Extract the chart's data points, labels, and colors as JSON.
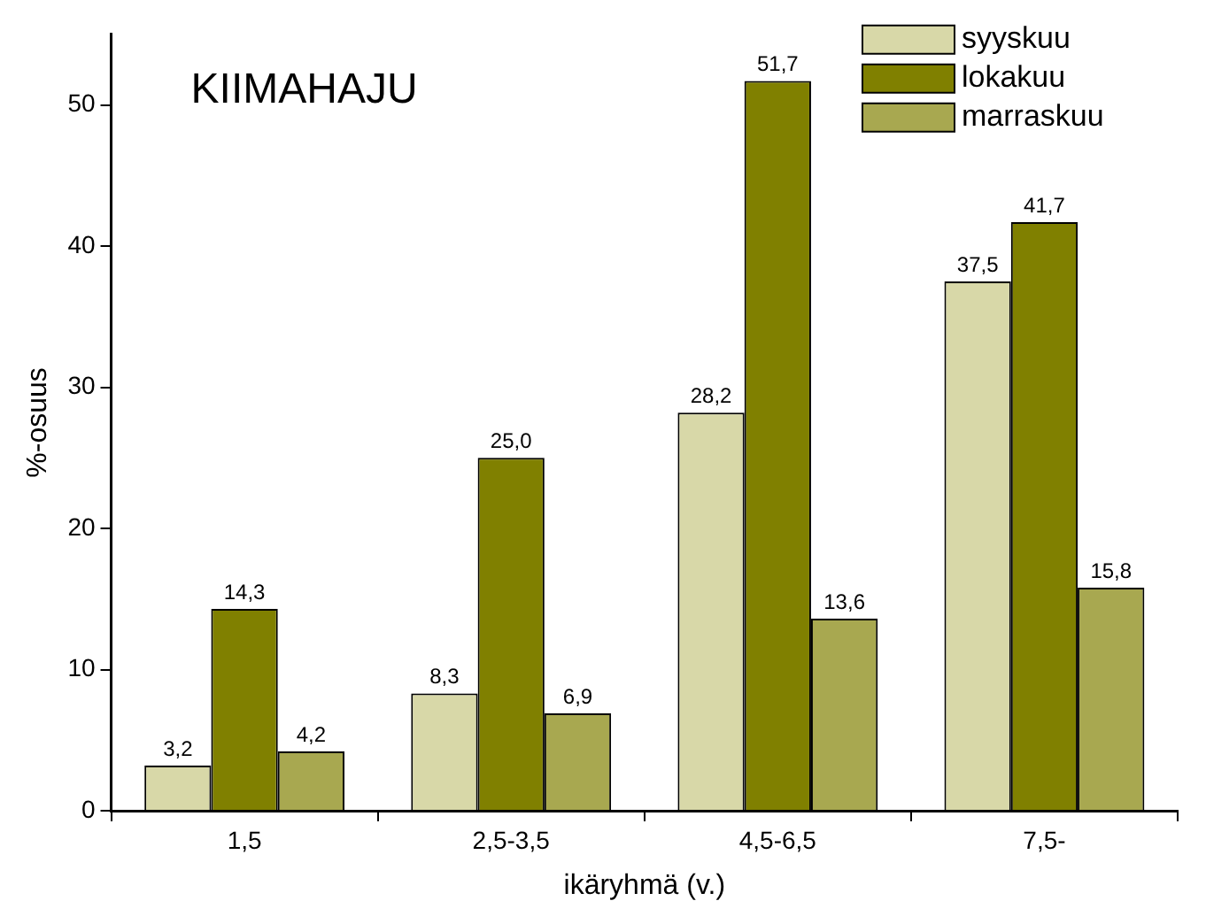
{
  "chart_data": {
    "type": "bar",
    "title": "KIIMAHAJU",
    "xlabel": "ikäryhmä (v.)",
    "ylabel": "%-osuus",
    "categories": [
      "1,5",
      "2,5-3,5",
      "4,5-6,5",
      "7,5-"
    ],
    "series": [
      {
        "name": "syyskuu",
        "color": "#d8d8a8",
        "values": [
          3.2,
          8.3,
          28.2,
          37.5
        ],
        "value_labels": [
          "3,2",
          "8,3",
          "28,2",
          "37,5"
        ]
      },
      {
        "name": "lokakuu",
        "color": "#808000",
        "values": [
          14.3,
          25.0,
          51.7,
          41.7
        ],
        "value_labels": [
          "14,3",
          "25,0",
          "51,7",
          "41,7"
        ]
      },
      {
        "name": "marraskuu",
        "color": "#a8a850",
        "values": [
          4.2,
          6.9,
          13.6,
          15.8
        ],
        "value_labels": [
          "4,2",
          "6,9",
          "13,6",
          "15,8"
        ]
      }
    ],
    "ylim": [
      0,
      55
    ],
    "yticks": [
      0,
      10,
      20,
      30,
      40,
      50
    ],
    "grid": false,
    "legend": "top right"
  }
}
